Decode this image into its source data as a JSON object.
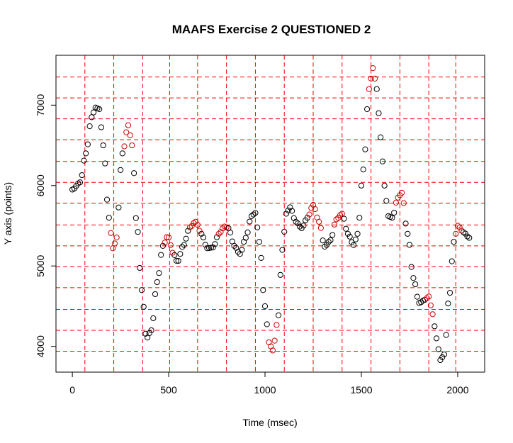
{
  "chart_data": {
    "type": "scatter",
    "title": "MAAFS Exercise 2 QUESTIONED 2",
    "xlabel": "Time (msec)",
    "ylabel": "Y axis (points)",
    "xlim": [
      -85,
      2140
    ],
    "ylim": [
      3680,
      7620
    ],
    "xticks": [
      0,
      500,
      1000,
      1500,
      2000
    ],
    "yticks": [
      4000,
      5000,
      6000,
      7000
    ],
    "grid": true,
    "grid_color": "#ff0000",
    "grid_x": [
      65,
      215,
      365,
      505,
      650,
      800,
      950,
      1100,
      1250,
      1400,
      1550,
      1700,
      1850,
      1990
    ],
    "grid_y": [
      3940,
      4200,
      4460,
      4730,
      4990,
      5250,
      5510,
      5780,
      6040,
      6300,
      6570,
      6830,
      7090,
      7350
    ],
    "marker": "open-circle",
    "marker_color": "#000000",
    "highlight_color": "#cc0000",
    "keypoints": [
      [
        0,
        5950
      ],
      [
        40,
        6040
      ],
      [
        70,
        6400
      ],
      [
        100,
        6850
      ],
      [
        120,
        6970
      ],
      [
        140,
        6950
      ],
      [
        160,
        6500
      ],
      [
        190,
        5600
      ],
      [
        210,
        5220
      ],
      [
        225,
        5300
      ],
      [
        260,
        6400
      ],
      [
        290,
        6750
      ],
      [
        310,
        6500
      ],
      [
        335,
        5500
      ],
      [
        360,
        4700
      ],
      [
        385,
        4100
      ],
      [
        410,
        4200
      ],
      [
        440,
        4800
      ],
      [
        470,
        5250
      ],
      [
        495,
        5370
      ],
      [
        525,
        5150
      ],
      [
        545,
        5050
      ],
      [
        575,
        5250
      ],
      [
        610,
        5480
      ],
      [
        640,
        5550
      ],
      [
        670,
        5400
      ],
      [
        700,
        5220
      ],
      [
        730,
        5230
      ],
      [
        760,
        5400
      ],
      [
        790,
        5490
      ],
      [
        810,
        5470
      ],
      [
        840,
        5250
      ],
      [
        870,
        5150
      ],
      [
        900,
        5350
      ],
      [
        930,
        5620
      ],
      [
        950,
        5660
      ],
      [
        970,
        5300
      ],
      [
        1000,
        4500
      ],
      [
        1020,
        4050
      ],
      [
        1040,
        3950
      ],
      [
        1065,
        4300
      ],
      [
        1090,
        5200
      ],
      [
        1110,
        5650
      ],
      [
        1130,
        5730
      ],
      [
        1160,
        5550
      ],
      [
        1190,
        5470
      ],
      [
        1220,
        5600
      ],
      [
        1250,
        5760
      ],
      [
        1280,
        5550
      ],
      [
        1310,
        5240
      ],
      [
        1340,
        5320
      ],
      [
        1370,
        5580
      ],
      [
        1400,
        5650
      ],
      [
        1430,
        5400
      ],
      [
        1460,
        5260
      ],
      [
        1480,
        5400
      ],
      [
        1510,
        6200
      ],
      [
        1540,
        7200
      ],
      [
        1560,
        7460
      ],
      [
        1580,
        7200
      ],
      [
        1600,
        6600
      ],
      [
        1620,
        6000
      ],
      [
        1640,
        5620
      ],
      [
        1660,
        5600
      ],
      [
        1690,
        5850
      ],
      [
        1710,
        5910
      ],
      [
        1740,
        5400
      ],
      [
        1770,
        4850
      ],
      [
        1800,
        4540
      ],
      [
        1830,
        4580
      ],
      [
        1850,
        4620
      ],
      [
        1870,
        4400
      ],
      [
        1890,
        4100
      ],
      [
        1910,
        3830
      ],
      [
        1930,
        3900
      ],
      [
        1955,
        4600
      ],
      [
        1980,
        5300
      ],
      [
        2000,
        5500
      ],
      [
        2030,
        5420
      ],
      [
        2060,
        5350
      ]
    ],
    "sample_step_ms": 10,
    "highlight_ranges": [
      [
        195,
        235
      ],
      [
        270,
        315
      ],
      [
        480,
        520
      ],
      [
        610,
        660
      ],
      [
        760,
        800
      ],
      [
        1020,
        1060
      ],
      [
        1230,
        1290
      ],
      [
        1360,
        1400
      ],
      [
        1540,
        1570
      ],
      [
        1680,
        1720
      ],
      [
        1840,
        1870
      ],
      [
        1990,
        2020
      ]
    ]
  }
}
